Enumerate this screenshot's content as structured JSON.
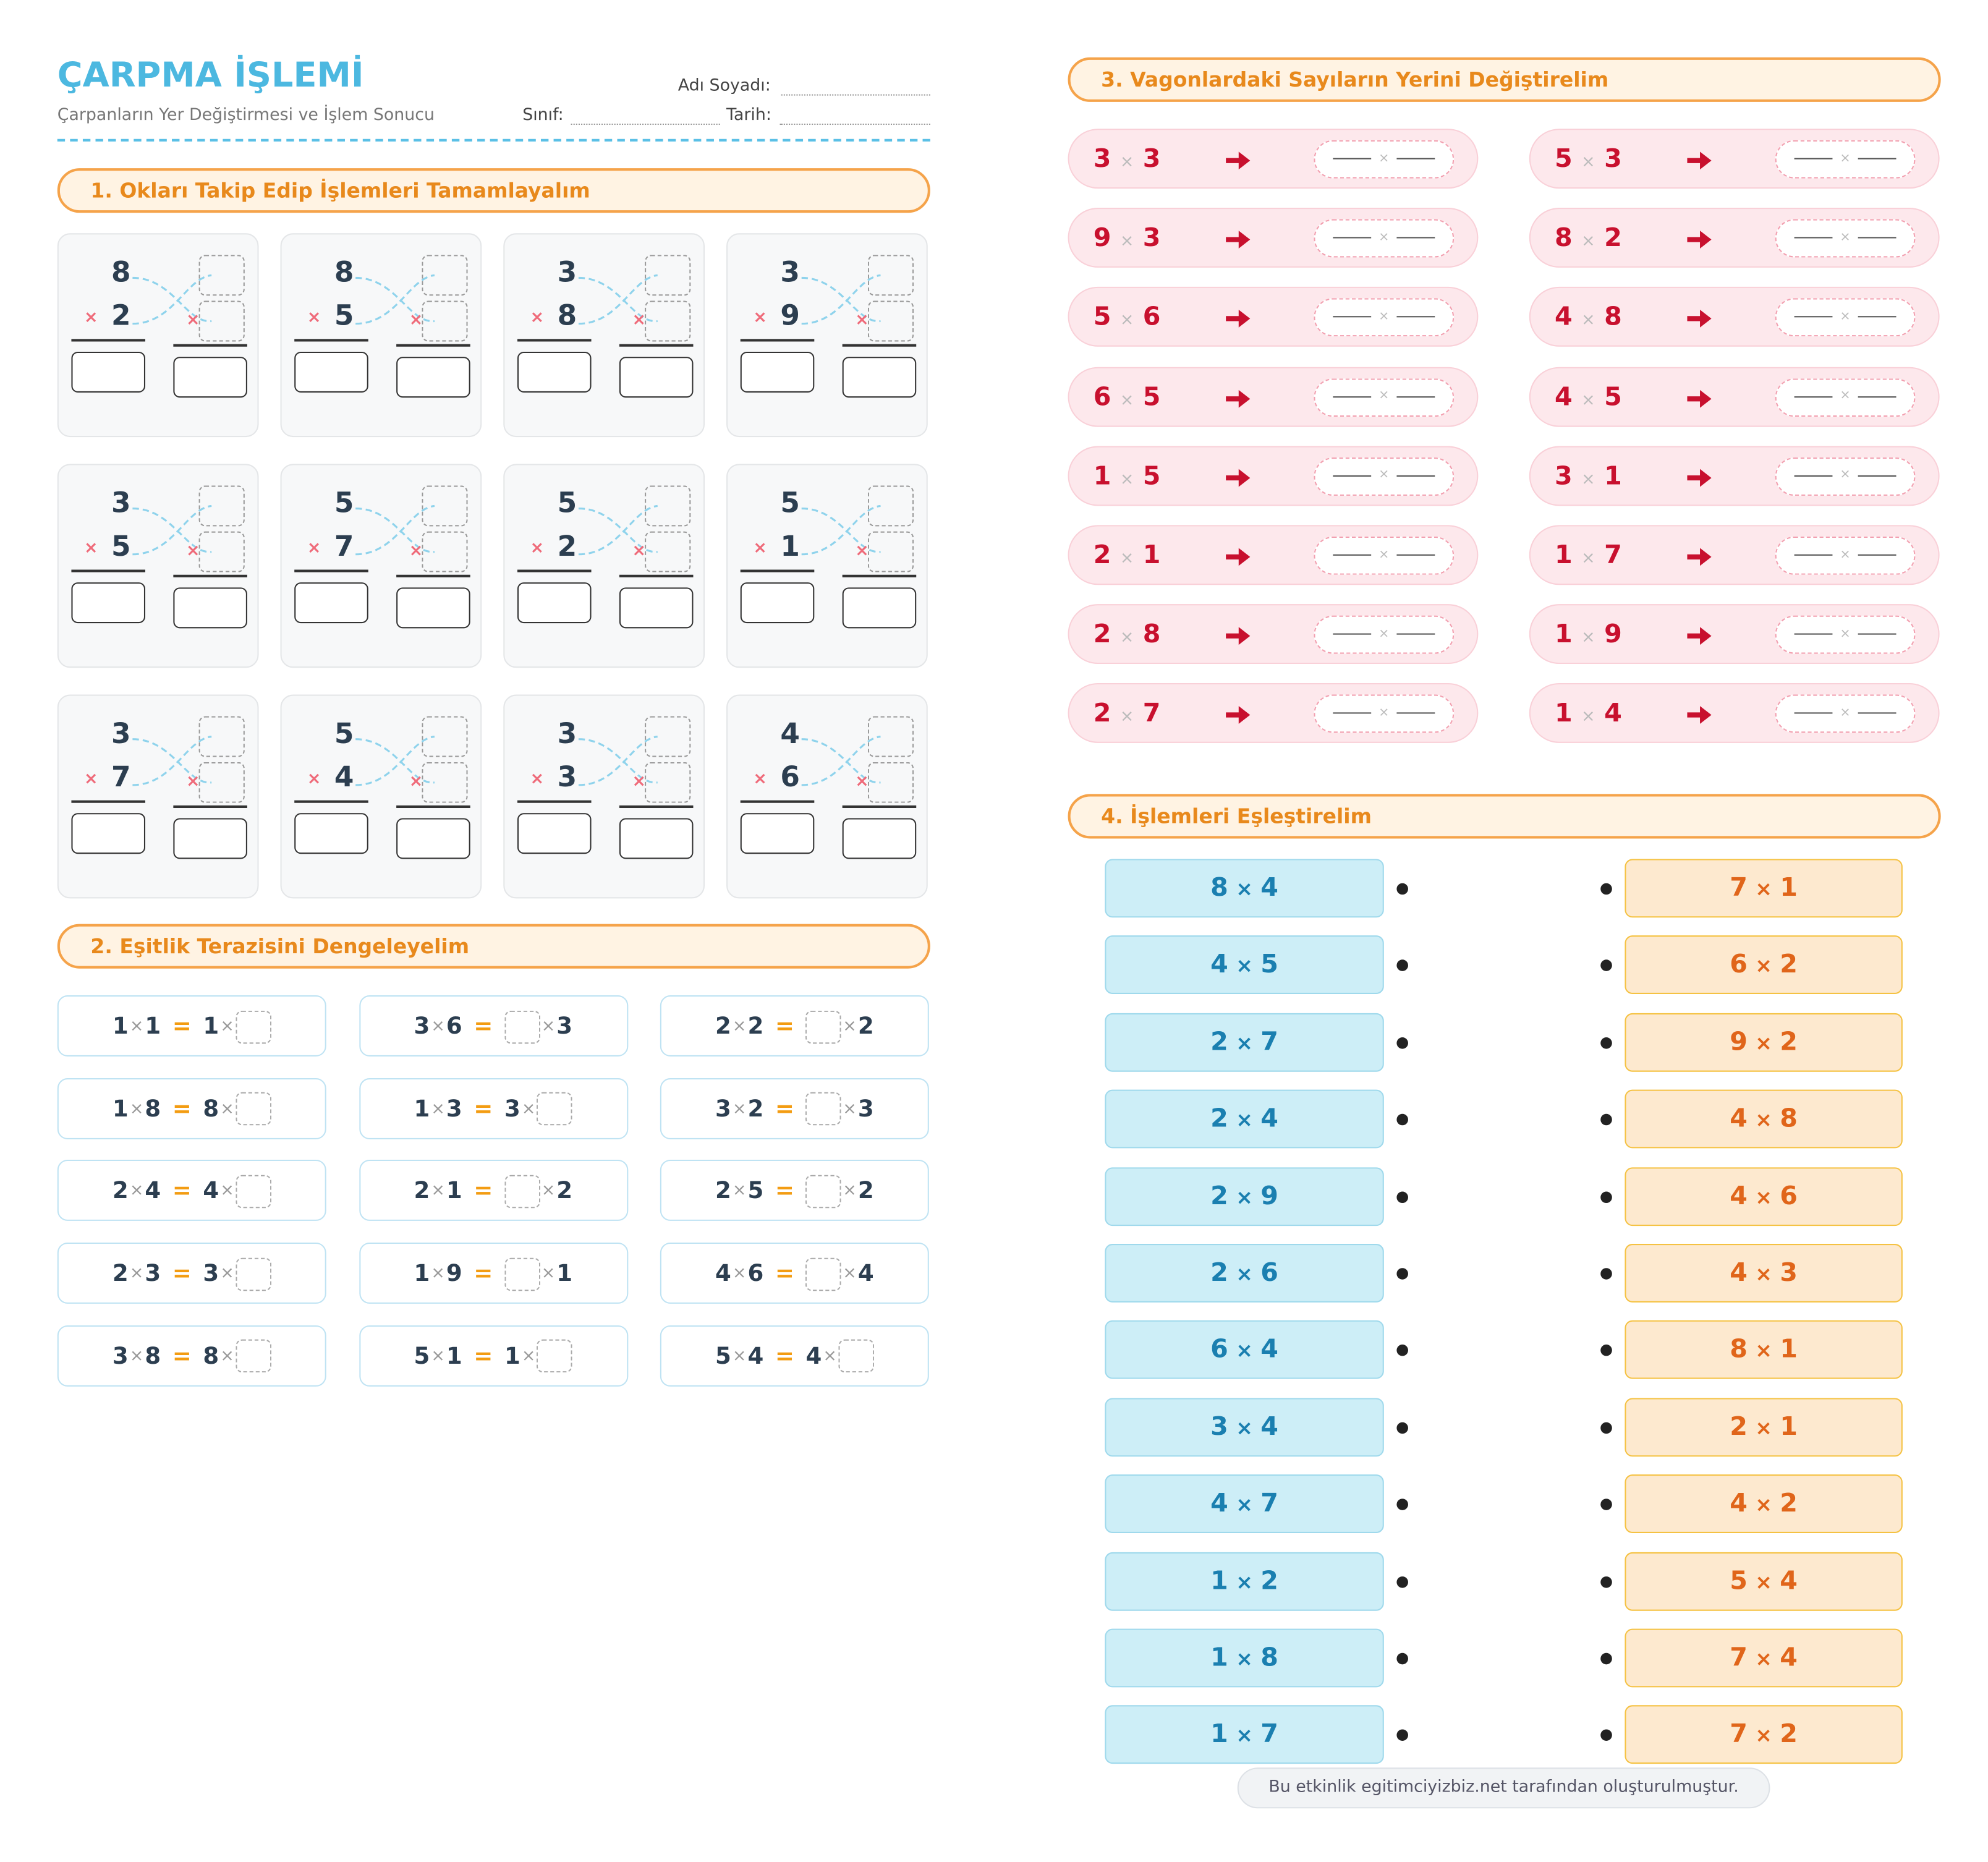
{
  "header": {
    "title": "ÇARPMA İŞLEMİ",
    "subtitle": "Çarpanların Yer Değiştirmesi ve İşlem Sonucu",
    "name_label": "Adı Soyadı:",
    "class_label": "Sınıf:",
    "date_label": "Tarih:"
  },
  "operator": "×",
  "equals": "=",
  "section1": {
    "title": "1. Okları Takip Edip İşlemleri Tamamlayalım",
    "problems": [
      [
        8,
        2
      ],
      [
        8,
        5
      ],
      [
        3,
        8
      ],
      [
        3,
        9
      ],
      [
        3,
        5
      ],
      [
        5,
        7
      ],
      [
        5,
        2
      ],
      [
        5,
        1
      ],
      [
        3,
        7
      ],
      [
        5,
        4
      ],
      [
        3,
        3
      ],
      [
        4,
        6
      ]
    ]
  },
  "section2": {
    "title": "2. Eşitlik Terazisini Dengeleyelim",
    "items": [
      {
        "left": [
          1,
          1
        ],
        "right": [
          1,
          null
        ]
      },
      {
        "left": [
          3,
          6
        ],
        "right": [
          null,
          3
        ]
      },
      {
        "left": [
          2,
          2
        ],
        "right": [
          null,
          2
        ]
      },
      {
        "left": [
          1,
          8
        ],
        "right": [
          8,
          null
        ]
      },
      {
        "left": [
          1,
          3
        ],
        "right": [
          3,
          null
        ]
      },
      {
        "left": [
          3,
          2
        ],
        "right": [
          null,
          3
        ]
      },
      {
        "left": [
          2,
          4
        ],
        "right": [
          4,
          null
        ]
      },
      {
        "left": [
          2,
          1
        ],
        "right": [
          null,
          2
        ]
      },
      {
        "left": [
          2,
          5
        ],
        "right": [
          null,
          2
        ]
      },
      {
        "left": [
          2,
          3
        ],
        "right": [
          3,
          null
        ]
      },
      {
        "left": [
          1,
          9
        ],
        "right": [
          null,
          1
        ]
      },
      {
        "left": [
          4,
          6
        ],
        "right": [
          null,
          4
        ]
      },
      {
        "left": [
          3,
          8
        ],
        "right": [
          8,
          null
        ]
      },
      {
        "left": [
          5,
          1
        ],
        "right": [
          1,
          null
        ]
      },
      {
        "left": [
          5,
          4
        ],
        "right": [
          4,
          null
        ]
      }
    ]
  },
  "section3": {
    "title": "3. Vagonlardaki Sayıların Yerini Değiştirelim",
    "items": [
      [
        3,
        3
      ],
      [
        5,
        3
      ],
      [
        9,
        3
      ],
      [
        8,
        2
      ],
      [
        5,
        6
      ],
      [
        4,
        8
      ],
      [
        6,
        5
      ],
      [
        4,
        5
      ],
      [
        1,
        5
      ],
      [
        3,
        1
      ],
      [
        2,
        1
      ],
      [
        1,
        7
      ],
      [
        2,
        8
      ],
      [
        1,
        9
      ],
      [
        2,
        7
      ],
      [
        1,
        4
      ]
    ]
  },
  "section4": {
    "title": "4. İşlemleri Eşleştirelim",
    "left": [
      [
        8,
        4
      ],
      [
        4,
        5
      ],
      [
        2,
        7
      ],
      [
        2,
        4
      ],
      [
        2,
        9
      ],
      [
        2,
        6
      ],
      [
        6,
        4
      ],
      [
        3,
        4
      ],
      [
        4,
        7
      ],
      [
        1,
        2
      ],
      [
        1,
        8
      ],
      [
        1,
        7
      ]
    ],
    "right": [
      [
        7,
        1
      ],
      [
        6,
        2
      ],
      [
        9,
        2
      ],
      [
        4,
        8
      ],
      [
        4,
        6
      ],
      [
        4,
        3
      ],
      [
        8,
        1
      ],
      [
        2,
        1
      ],
      [
        4,
        2
      ],
      [
        5,
        4
      ],
      [
        7,
        4
      ],
      [
        7,
        2
      ]
    ]
  },
  "footer": "Bu etkinlik egitimciyizbiz.net tarafından oluşturulmuştur."
}
